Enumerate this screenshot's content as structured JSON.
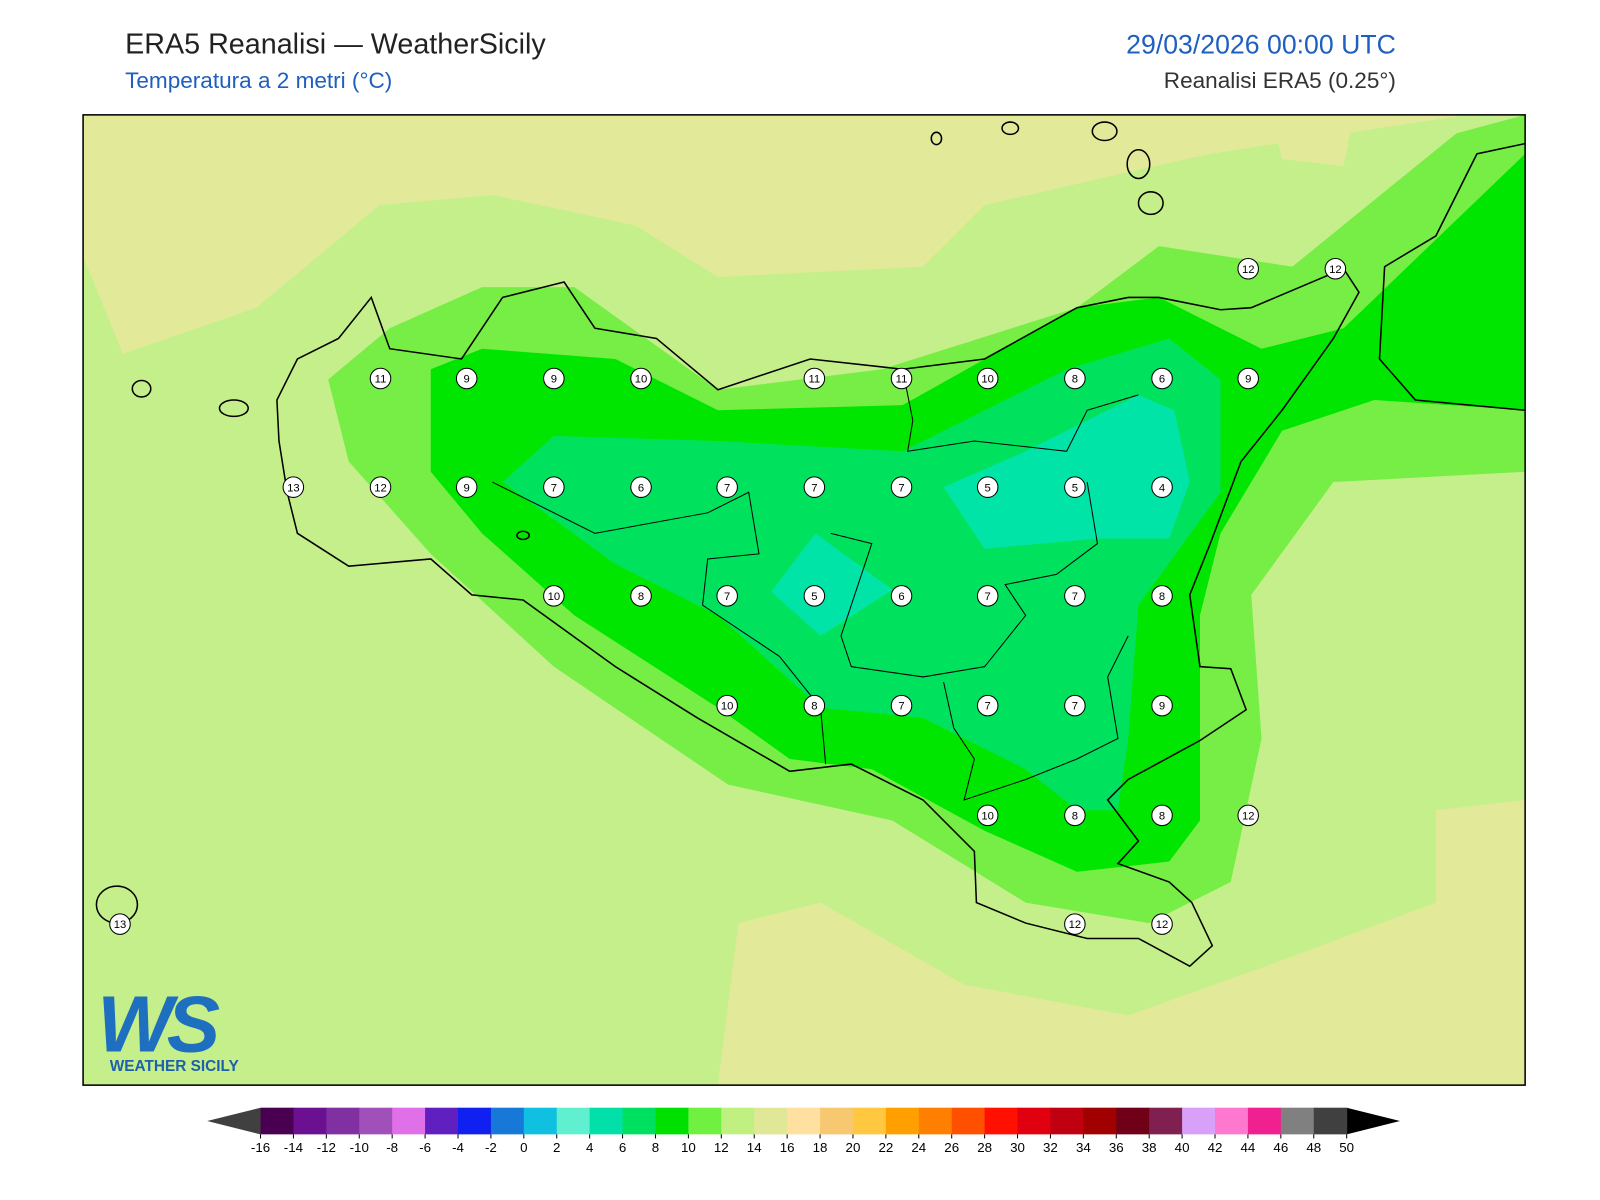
{
  "header": {
    "title": "ERA5 Reanalisi — WeatherSicily",
    "subtitle": "Temperatura a 2 metri (°C)",
    "datetime": "29/03/2026 00:00 UTC",
    "source": "Reanalisi ERA5 (0.25°)"
  },
  "stations": {
    "values": [
      12,
      12,
      11,
      9,
      9,
      10,
      11,
      11,
      10,
      8,
      6,
      9,
      13,
      12,
      9,
      7,
      6,
      7,
      7,
      7,
      5,
      5,
      4,
      10,
      8,
      7,
      5,
      6,
      7,
      7,
      8,
      10,
      8,
      7,
      7,
      7,
      9,
      10,
      8,
      8,
      12,
      13,
      12,
      12
    ]
  },
  "logo": {
    "mark": "WS",
    "text": "WEATHER SICILY"
  },
  "colorbar": {
    "ticks": [
      -16,
      -14,
      -12,
      -10,
      -8,
      -6,
      -4,
      -2,
      0,
      2,
      4,
      6,
      8,
      10,
      12,
      14,
      16,
      18,
      20,
      22,
      24,
      26,
      28,
      30,
      32,
      34,
      36,
      38,
      40,
      42,
      44,
      46,
      48,
      50
    ],
    "colors": [
      "#4a0050",
      "#6a1090",
      "#8030a0",
      "#a050b8",
      "#e070e8",
      "#6020c0",
      "#1020f0",
      "#1878d8",
      "#10c0e0",
      "#60f0d0",
      "#00e0a8",
      "#00e060",
      "#00e000",
      "#70f040",
      "#c0f080",
      "#e0e898",
      "#ffe0a0",
      "#f8c870",
      "#ffc840",
      "#ffa000",
      "#ff8000",
      "#ff5000",
      "#ff1000",
      "#e00010",
      "#c00010",
      "#a00000",
      "#700018",
      "#802050",
      "#d8a0f8",
      "#ff78d0",
      "#f02090",
      "#808080",
      "#404040"
    ],
    "under_color": "#404040",
    "over_color": "#000000"
  }
}
